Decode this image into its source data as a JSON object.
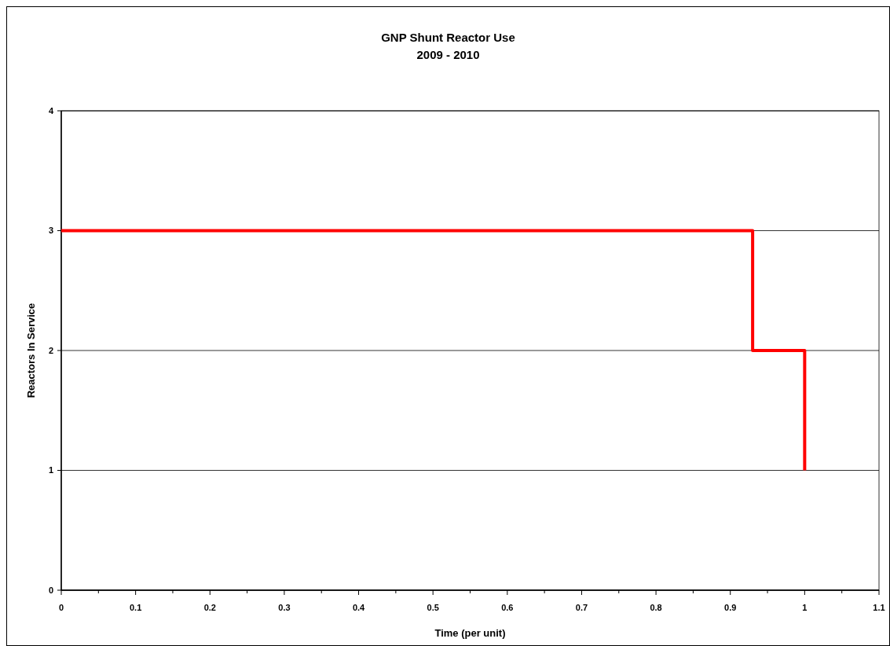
{
  "chart_data": {
    "type": "step",
    "title": "GNP Shunt Reactor Use\n2009 - 2010",
    "xlabel": "Time (per unit)",
    "ylabel": "Reactors In Service",
    "x": [
      0,
      0.93,
      1
    ],
    "series": [
      {
        "color": "#ff0000",
        "values": [
          3,
          2,
          1
        ]
      }
    ],
    "xlim": [
      0,
      1.1
    ],
    "xticks": [
      0,
      {
        "value": 0.05,
        "label": null
      },
      0.1,
      {
        "value": 0.15,
        "label": null
      },
      0.2,
      {
        "value": 0.25,
        "label": null
      },
      0.3,
      {
        "value": 0.35,
        "label": null
      },
      0.4,
      {
        "value": 0.45,
        "label": null
      },
      0.5,
      {
        "value": 0.55,
        "label": null
      },
      0.6,
      {
        "value": 0.65,
        "label": null
      },
      0.7,
      {
        "value": 0.75,
        "label": null
      },
      0.8,
      {
        "value": 0.85,
        "label": null
      },
      0.9,
      {
        "value": 0.95,
        "label": null
      },
      1,
      {
        "value": 1.05,
        "label": null
      },
      1.1
    ],
    "ylim": [
      0,
      4
    ],
    "yticks": [
      0,
      1,
      2,
      3,
      4
    ],
    "grid": "y",
    "marker": "none",
    "line_style": "solid"
  }
}
